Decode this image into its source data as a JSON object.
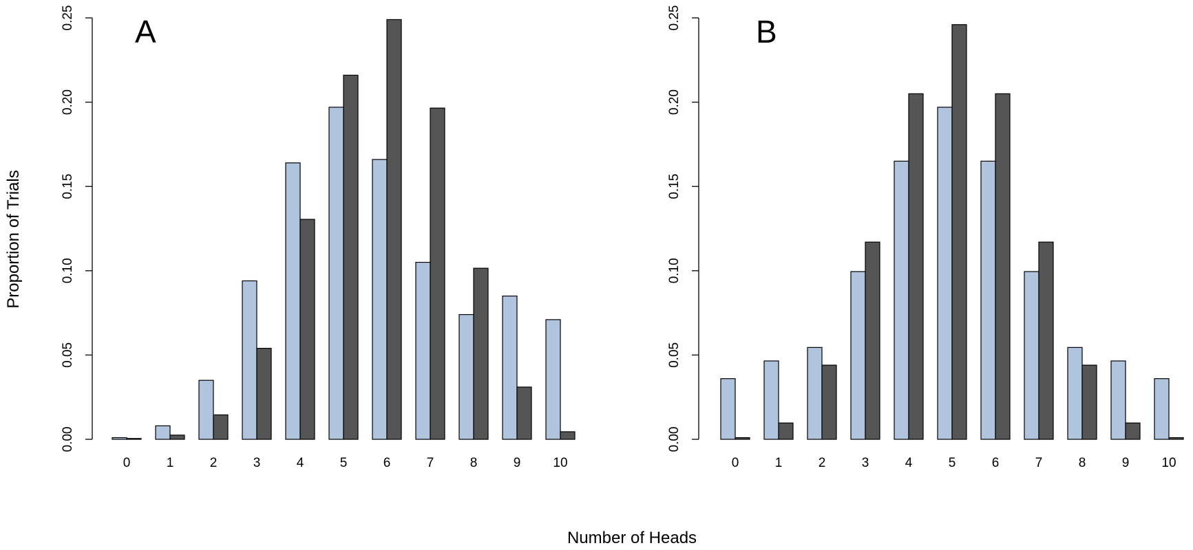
{
  "figure": {
    "ylabel": "Proportion of Trials",
    "xlabel": "Number of Heads"
  },
  "colors": {
    "series_light": "#b0c4de",
    "series_dark": "#555555",
    "axis": "#000000"
  },
  "chart_data": [
    {
      "type": "bar",
      "panel_label": "A",
      "categories": [
        "0",
        "1",
        "2",
        "3",
        "4",
        "5",
        "6",
        "7",
        "8",
        "9",
        "10"
      ],
      "series": [
        {
          "values": [
            0.001,
            0.008,
            0.035,
            0.094,
            0.164,
            0.197,
            0.166,
            0.105,
            0.074,
            0.085,
            0.071
          ]
        },
        {
          "values": [
            0.0005,
            0.0025,
            0.0145,
            0.054,
            0.1305,
            0.216,
            0.249,
            0.1965,
            0.1015,
            0.031,
            0.0045
          ]
        }
      ],
      "ylim": [
        0,
        0.25
      ],
      "yticks": [
        "0.00",
        "0.05",
        "0.10",
        "0.15",
        "0.20",
        "0.25"
      ],
      "ylabel": "Proportion of Trials",
      "grid": false,
      "legend": "none"
    },
    {
      "type": "bar",
      "panel_label": "B",
      "categories": [
        "0",
        "1",
        "2",
        "3",
        "4",
        "5",
        "6",
        "7",
        "8",
        "9",
        "10"
      ],
      "series": [
        {
          "values": [
            0.036,
            0.0465,
            0.0545,
            0.0995,
            0.165,
            0.197,
            0.165,
            0.0995,
            0.0545,
            0.0465,
            0.036
          ]
        },
        {
          "values": [
            0.001,
            0.0097,
            0.044,
            0.117,
            0.205,
            0.246,
            0.205,
            0.117,
            0.044,
            0.0097,
            0.001
          ]
        }
      ],
      "ylim": [
        0,
        0.25
      ],
      "yticks": [
        "0.00",
        "0.05",
        "0.10",
        "0.15",
        "0.20",
        "0.25"
      ],
      "grid": false,
      "legend": "none"
    }
  ]
}
